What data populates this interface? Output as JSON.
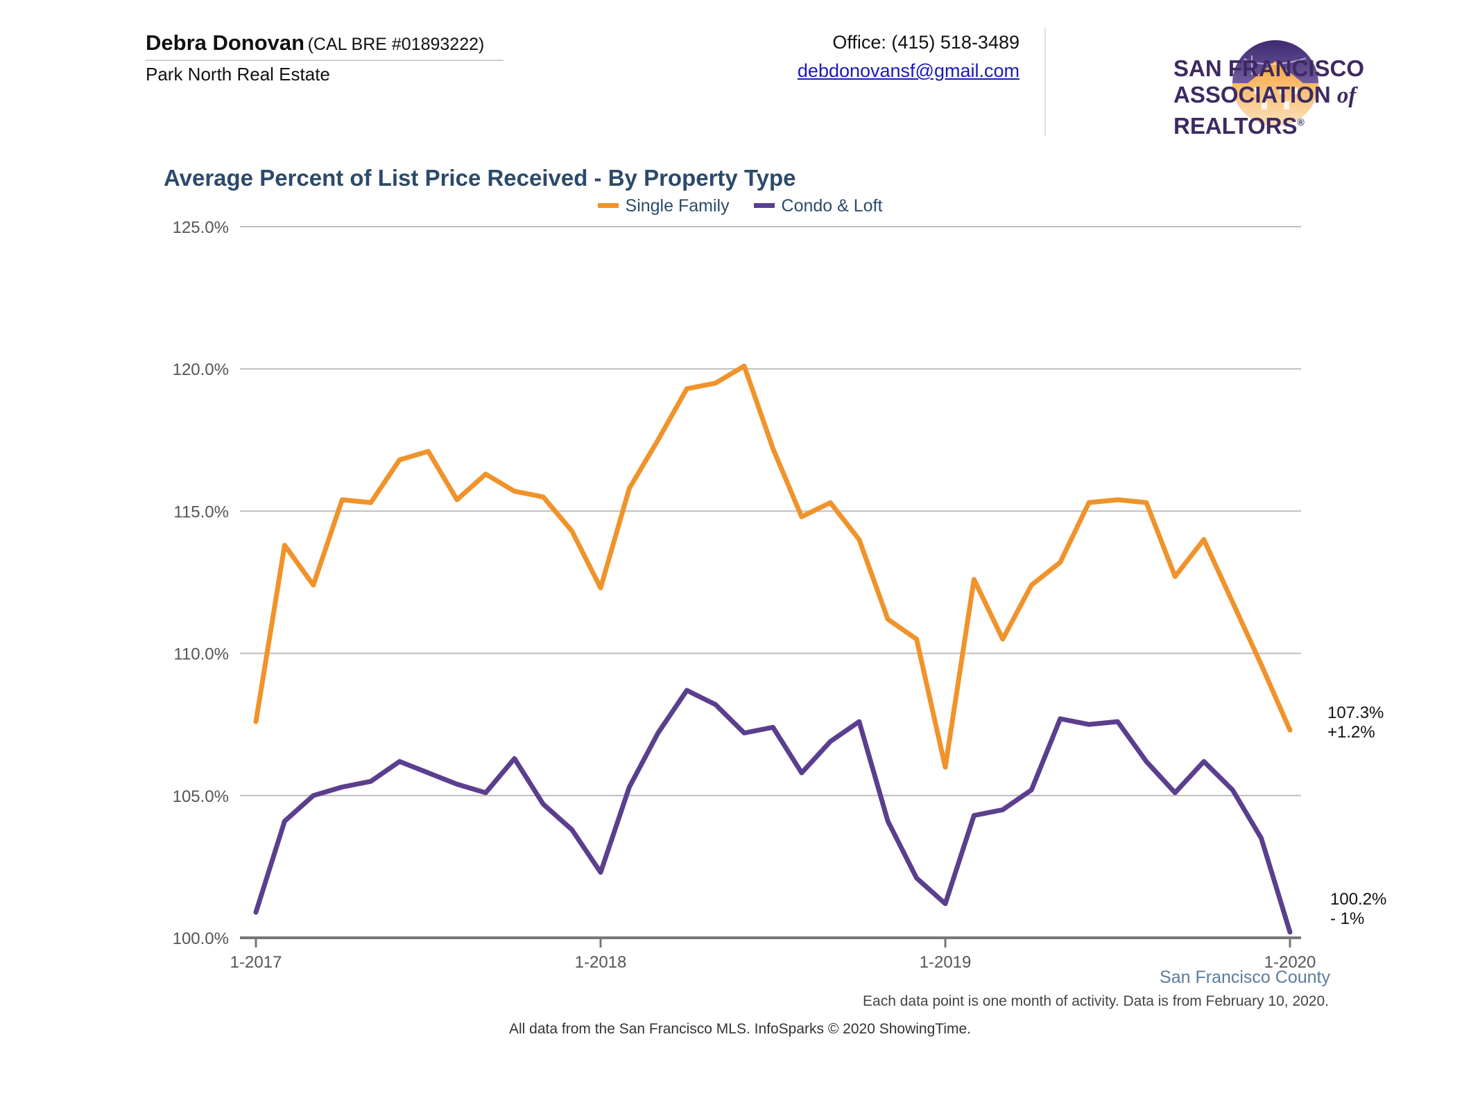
{
  "agent": {
    "name": "Debra Donovan",
    "license": "(CAL BRE #01893222)",
    "company": "Park North Real Estate"
  },
  "contact": {
    "office": "Office: (415) 518-3489",
    "email": "debdonovansf@gmail.com"
  },
  "logo": {
    "line1": "SAN FRANCISCO",
    "line2_a": "ASSOCIATION",
    "line2_of": "of",
    "line2_b": "REALTORS",
    "reg": "®",
    "colors": {
      "purple": "#5b3a8e",
      "orange": "#f29b2f"
    }
  },
  "chart_data": {
    "type": "line",
    "title": "Average Percent of List Price Received - By Property Type",
    "legend_position": "top-center",
    "grid": true,
    "ylim": [
      100,
      125
    ],
    "y_ticks": [
      "100.0%",
      "105.0%",
      "110.0%",
      "115.0%",
      "120.0%",
      "125.0%"
    ],
    "x_ticks": [
      "1-2017",
      "1-2018",
      "1-2019",
      "1-2020"
    ],
    "x": [
      "1-2017",
      "2-2017",
      "3-2017",
      "4-2017",
      "5-2017",
      "6-2017",
      "7-2017",
      "8-2017",
      "9-2017",
      "10-2017",
      "11-2017",
      "12-2017",
      "1-2018",
      "2-2018",
      "3-2018",
      "4-2018",
      "5-2018",
      "6-2018",
      "7-2018",
      "8-2018",
      "9-2018",
      "10-2018",
      "11-2018",
      "12-2018",
      "1-2019",
      "2-2019",
      "3-2019",
      "4-2019",
      "5-2019",
      "6-2019",
      "7-2019",
      "8-2019",
      "9-2019",
      "10-2019",
      "11-2019",
      "12-2019",
      "1-2020"
    ],
    "series": [
      {
        "name": "Single Family",
        "color": "#f0932b",
        "values": [
          107.6,
          113.8,
          112.4,
          115.4,
          115.3,
          116.8,
          117.1,
          115.4,
          116.3,
          115.7,
          115.5,
          114.3,
          112.3,
          115.8,
          117.5,
          119.3,
          119.5,
          120.1,
          117.2,
          114.8,
          115.3,
          114.0,
          111.2,
          110.5,
          106.0,
          112.6,
          110.5,
          112.4,
          113.2,
          115.3,
          115.4,
          115.3,
          112.7,
          114.0,
          111.8,
          109.6,
          107.3
        ],
        "end_label": "107.3%",
        "end_change": "+1.2%"
      },
      {
        "name": "Condo & Loft",
        "color": "#5b3f8e",
        "values": [
          100.9,
          104.1,
          105.0,
          105.3,
          105.5,
          106.2,
          105.8,
          105.4,
          105.1,
          106.3,
          104.7,
          103.8,
          102.3,
          105.3,
          107.2,
          108.7,
          108.2,
          107.2,
          107.4,
          105.8,
          106.9,
          107.6,
          104.1,
          102.1,
          101.2,
          104.3,
          104.5,
          105.2,
          107.7,
          107.5,
          107.6,
          106.2,
          105.1,
          106.2,
          105.2,
          103.5,
          100.2
        ],
        "end_label": "100.2%",
        "end_change": "- 1%"
      }
    ]
  },
  "footer": {
    "region": "San Francisco County",
    "note": "Each data point is one month of activity. Data is from February 10, 2020.",
    "source": "All data from the San Francisco MLS. InfoSparks © 2020 ShowingTime."
  }
}
